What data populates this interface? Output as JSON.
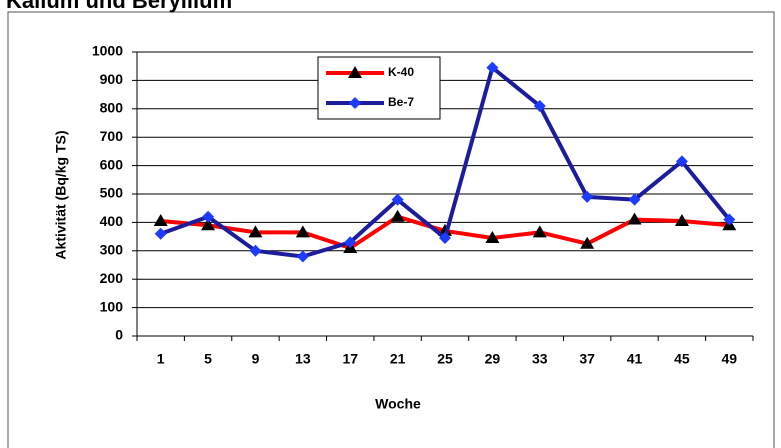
{
  "chart_data": {
    "type": "line",
    "title": "Kalium und Beryllium",
    "x_label": "Woche",
    "y_label": "Aktivität  (Bq/kg TS)",
    "categories": [
      "1",
      "5",
      "9",
      "13",
      "17",
      "21",
      "25",
      "29",
      "33",
      "37",
      "41",
      "45",
      "49"
    ],
    "series": [
      {
        "name": "K-40",
        "color": "#ff0000",
        "marker": "triangle",
        "marker_color": "#000000",
        "values": [
          405,
          390,
          365,
          365,
          310,
          420,
          370,
          345,
          365,
          325,
          410,
          405,
          390
        ]
      },
      {
        "name": "Be-7",
        "color": "#1c1c9c",
        "marker": "diamond",
        "marker_color": "#1e3cff",
        "values": [
          360,
          420,
          300,
          280,
          330,
          480,
          345,
          945,
          810,
          490,
          480,
          615,
          410
        ]
      }
    ],
    "ylim": [
      0,
      1000
    ],
    "yticks": [
      0,
      100,
      200,
      300,
      400,
      500,
      600,
      700,
      800,
      900,
      1000
    ],
    "grid": true
  }
}
